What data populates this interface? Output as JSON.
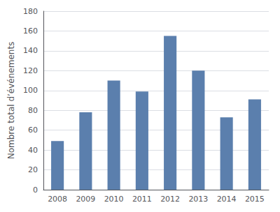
{
  "chart_data": {
    "type": "bar",
    "ylabel": "Nombre total d’événements",
    "categories": [
      "2008",
      "2009",
      "2010",
      "2011",
      "2012",
      "2013",
      "2014",
      "2015"
    ],
    "values": [
      49,
      78,
      110,
      99,
      155,
      120,
      73,
      91
    ],
    "color": "#5b7fad",
    "ylim": [
      0,
      180
    ],
    "yticks": [
      0,
      20,
      40,
      60,
      80,
      100,
      120,
      140,
      160,
      180
    ],
    "grid": true
  }
}
